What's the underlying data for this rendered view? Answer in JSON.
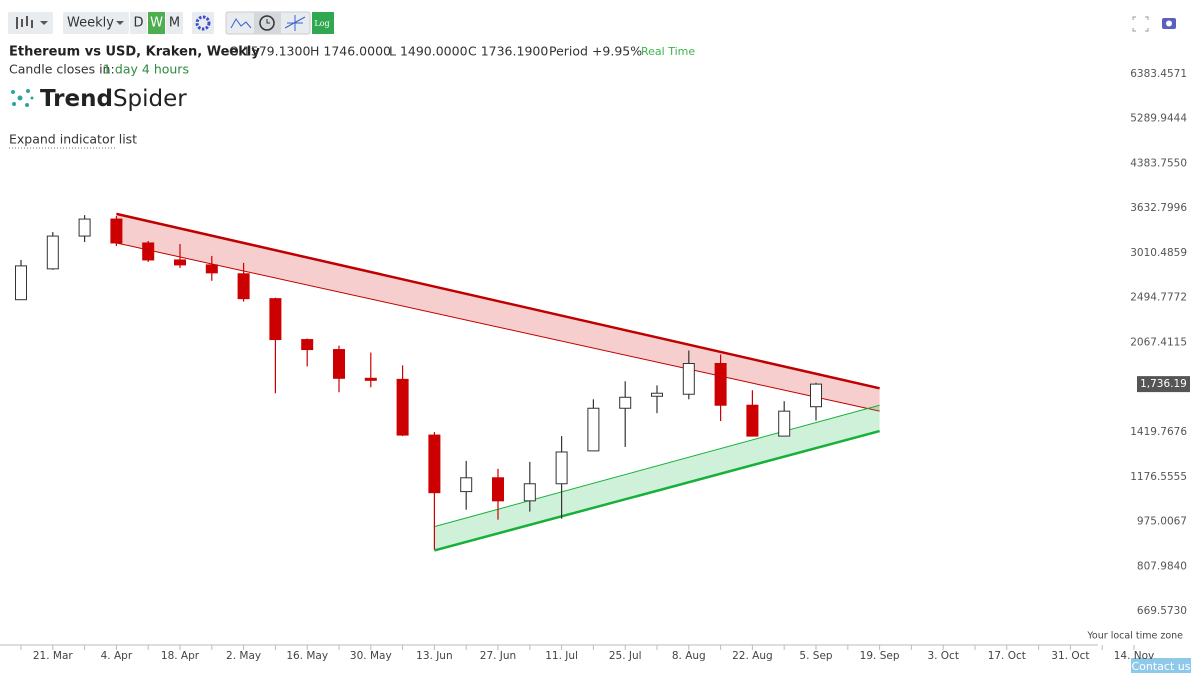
{
  "toolbar": {
    "interval": "Weekly",
    "periods": [
      "D",
      "W",
      "M"
    ],
    "active_period": 1,
    "log_button": "Log"
  },
  "header": {
    "title": "Ethereum vs USD, Kraken, Weekly",
    "ohlc": [
      "O 1579.1300",
      "H 1746.0000",
      "L 1490.0000",
      "C 1736.1900"
    ],
    "period": "Period +9.95%",
    "mode": "Real Time",
    "countdown_label": "Candle closes in:",
    "countdown": "1 day 4 hours"
  },
  "logo": {
    "bold": "Trend",
    "rest": "Spider"
  },
  "indicator_toggle": "Expand indicator list",
  "timezone_note": "Your local time zone",
  "contact": "Contact us",
  "chart_data": {
    "type": "candlestick",
    "log_scale": true,
    "categories": [
      null,
      "21. Mar",
      null,
      "4. Apr",
      null,
      "18. Apr",
      null,
      "2. May",
      null,
      "16. May",
      null,
      "30. May",
      null,
      "13. Jun",
      null,
      "27. Jun",
      null,
      "11. Jul",
      null,
      "25. Jul",
      null,
      "8. Aug",
      null,
      "22. Aug",
      null,
      "5. Sep",
      null,
      "19. Sep",
      null,
      "3. Oct",
      null,
      "17. Oct",
      null,
      "31. Oct",
      null,
      "14. Nov"
    ],
    "open": [
      2474,
      2816,
      3231,
      3470,
      3139,
      2923,
      2863,
      2758,
      2485,
      2093,
      2007,
      1779,
      1771,
      1402,
      1106,
      1172,
      1064,
      1143,
      1312,
      1569,
      1650,
      1664,
      1893,
      1589,
      1396,
      1579.13,
      null,
      null,
      null,
      null,
      null,
      null,
      null,
      null,
      null,
      null
    ],
    "high": [
      2923,
      3286,
      3528,
      3514,
      3165,
      3125,
      2973,
      2887,
      2495,
      2102,
      2041,
      1982,
      1878,
      1420,
      1258,
      1217,
      1253,
      1396,
      1629,
      1757,
      1727,
      1999,
      1966,
      1692,
      1616,
      1746,
      null,
      null,
      null,
      null,
      null,
      null,
      null,
      null,
      null,
      null
    ],
    "low": [
      2474,
      2804,
      3151,
      3099,
      2899,
      2827,
      2678,
      2454,
      1671,
      1870,
      1678,
      1713,
      1396,
      867,
      1025,
      983,
      1017,
      987,
      1312,
      1334,
      1537,
      1629,
      1487,
      1396,
      1396,
      1490,
      null,
      null,
      null,
      null,
      null,
      null,
      null,
      null,
      null,
      null
    ],
    "close": [
      2851,
      3231,
      3470,
      3139,
      2923,
      2863,
      2769,
      2485,
      2093,
      2007,
      1779,
      1764,
      1402,
      1101,
      1172,
      1064,
      1143,
      1306,
      1569,
      1643,
      1671,
      1893,
      1589,
      1396,
      1550,
      1736.19,
      null,
      null,
      null,
      null,
      null,
      null,
      null,
      null,
      null,
      null
    ],
    "up_color": "#ffffff",
    "down_color": "#cc0000",
    "wick_color": "#333333",
    "ylim": [
      606,
      7800
    ],
    "yticks": [
      {
        "value": 669.573,
        "label": "669.5730"
      },
      {
        "value": 807.984,
        "label": "807.9840"
      },
      975.0067,
      {
        "value": 1176.5555,
        "label": "1176.5555"
      },
      1419.7676,
      2067.4115,
      {
        "value": 2494.7772,
        "label": "2494.7772"
      },
      3010.4859,
      3632.7996,
      {
        "value": 4383.755,
        "label": "4383.7550"
      },
      5289.9444,
      6383.4571
    ],
    "last_price": {
      "value": 1736.19,
      "label": "1,736.19"
    },
    "channels": [
      {
        "x": [
          3,
          27
        ],
        "upper": [
          3546,
          1706
        ],
        "lower": [
          3139,
          1550
        ],
        "color": "#c00000",
        "fill": "rgba(220,60,60,0.25)",
        "bold": "upper"
      },
      {
        "x": [
          13,
          27
        ],
        "upper": [
          955,
          1589
        ],
        "lower": [
          864,
          1426
        ],
        "color": "#16b03a",
        "fill": "rgba(40,190,80,0.22)",
        "bold": "lower"
      }
    ]
  }
}
